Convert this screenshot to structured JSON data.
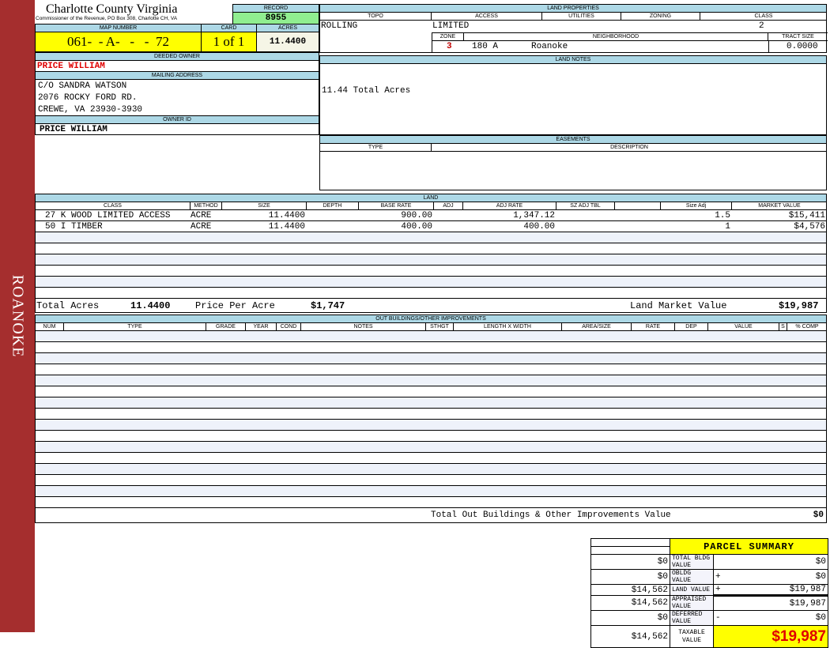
{
  "sidebar": {
    "label": "ROANOKE",
    "color": "#a52e2e"
  },
  "header": {
    "title": "Charlotte County Virginia",
    "subtitle": "Commissioner of the Revenue, PO Box 308, Charlotte CH, VA"
  },
  "record": {
    "label": "RECORD",
    "value": "8955"
  },
  "map": {
    "map_label": "MAP NUMBER",
    "map_value": "061-  - A-   -   -  72",
    "card_label": "CARD",
    "card_value": "1 of 1",
    "acres_label": "ACRES",
    "acres_value": "11.4400"
  },
  "owner": {
    "deeded_label": "DEEDED OWNER",
    "deeded_value": "PRICE WILLIAM",
    "mailing_label": "MAILING ADDRESS",
    "mailing_lines": [
      "C/O SANDRA WATSON",
      "2076 ROCKY FORD RD.",
      "CREWE, VA 23930-3930"
    ],
    "id_label": "OWNER ID",
    "id_value": "PRICE WILLIAM"
  },
  "land_properties": {
    "label": "LAND PROPERTIES",
    "topo_label": "TOPO",
    "access_label": "ACCESS",
    "utilities_label": "UTILITIES",
    "zoning_label": "ZONING",
    "class_label": "CLASS",
    "topo": "ROLLING",
    "access": "LIMITED",
    "class": "2",
    "zone_label": "ZONE",
    "neighborhood_label": "NEIGHBORHOOD",
    "tract_label": "TRACT SIZE",
    "zone": "3",
    "neighborhood_code": "180 A",
    "neighborhood_name": "Roanoke",
    "tract": "0.0000"
  },
  "land_notes": {
    "label": "LAND NOTES",
    "text": "11.44 Total Acres"
  },
  "easements": {
    "label": "EASEMENTS",
    "type_label": "TYPE",
    "description_label": "DESCRIPTION"
  },
  "land": {
    "label": "LAND",
    "columns": [
      "CLASS",
      "METHOD",
      "SIZE",
      "DEPTH",
      "BASE RATE",
      "ADJ",
      "ADJ RATE",
      "SZ ADJ TBL",
      "",
      "Size Adj",
      "MARKET VALUE"
    ],
    "rows": [
      [
        "27 K WOOD LIMITED ACCESS",
        "ACRE",
        "11.4400",
        "",
        "900.00",
        "",
        "1,347.12",
        "",
        "",
        "1.5",
        "$15,411"
      ],
      [
        "50 I TIMBER",
        "ACRE",
        "11.4400",
        "",
        "400.00",
        "",
        "400.00",
        "",
        "",
        "1",
        "$4,576"
      ]
    ],
    "total_acres_label": "Total Acres",
    "total_acres": "11.4400",
    "ppa_label": "Price Per Acre",
    "ppa": "$1,747",
    "lmv_label": "Land Market Value",
    "lmv": "$19,987"
  },
  "outbuildings": {
    "label": "OUT BUILDINGS/OTHER IMPROVEMENTS",
    "columns": [
      "NUM",
      "TYPE",
      "GRADE",
      "YEAR",
      "COND",
      "NOTES",
      "STHGT",
      "LENGTH X WIDTH",
      "AREA/SIZE",
      "RATE",
      "DEP",
      "VALUE",
      "S",
      "% COMP"
    ],
    "total_label": "Total Out Buildings & Other Improvements Value",
    "total": "$0"
  },
  "summary": {
    "title": "PARCEL SUMMARY",
    "rows": [
      {
        "left": "$0",
        "label": "TOTAL BLDG VALUE",
        "op": "",
        "value": "$0"
      },
      {
        "left": "$0",
        "label": "OBLDG VALUE",
        "op": "+",
        "value": "$0"
      },
      {
        "left": "$14,562",
        "label": "LAND VALUE",
        "op": "+",
        "value": "$19,987"
      },
      {
        "left": "$14,562",
        "label": "APPRAISED VALUE",
        "op": "",
        "value": "$19,987"
      },
      {
        "left": "$0",
        "label": "DEFERRED VALUE",
        "op": "-",
        "value": "$0"
      }
    ],
    "taxable_left": "$14,562",
    "taxable_label": "TAXABLE VALUE",
    "taxable_value": "$19,987"
  }
}
